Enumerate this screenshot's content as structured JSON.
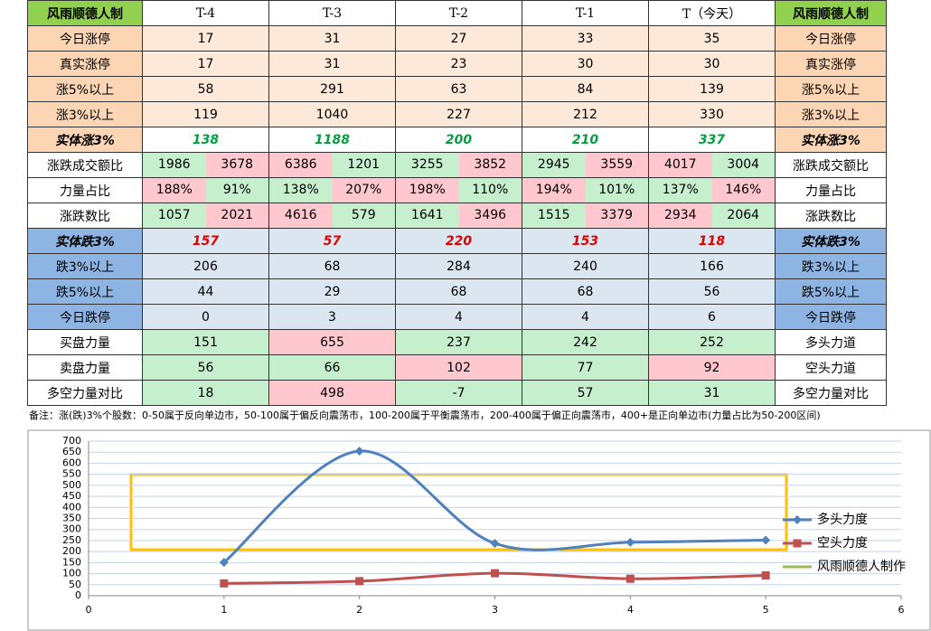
{
  "table": {
    "header": [
      "风雨顺德人制",
      "T-4",
      "T-3",
      "T-2",
      "T-1",
      "T（今天）",
      "风雨顺德人制"
    ],
    "rows": [
      {
        "label": "今日涨停",
        "right": "今日涨停",
        "style": "up",
        "cells": [
          17,
          31,
          27,
          33,
          35
        ]
      },
      {
        "label": "真实涨停",
        "right": "真实涨停",
        "style": "up",
        "cells": [
          17,
          31,
          23,
          30,
          30
        ]
      },
      {
        "label": "涨5%以上",
        "right": "涨5%以上",
        "style": "up",
        "cells": [
          58,
          291,
          63,
          84,
          139
        ]
      },
      {
        "label": "涨3%以上",
        "right": "涨3%以上",
        "style": "up",
        "cells": [
          119,
          1040,
          227,
          212,
          330
        ]
      },
      {
        "label": "实体涨3%",
        "right": "实体涨3%",
        "style": "upkey",
        "cells": [
          138,
          1188,
          200,
          210,
          337
        ]
      },
      {
        "label": "涨跌成交额比",
        "right": "涨跌成交额比",
        "style": "split",
        "cells": [
          [
            1986,
            3678
          ],
          [
            6386,
            1201
          ],
          [
            3255,
            3852
          ],
          [
            2945,
            3559
          ],
          [
            4017,
            3004
          ]
        ],
        "colors": [
          [
            "g",
            "p"
          ],
          [
            "p",
            "g"
          ],
          [
            "g",
            "p"
          ],
          [
            "g",
            "p"
          ],
          [
            "p",
            "g"
          ]
        ]
      },
      {
        "label": "力量占比",
        "right": "力量占比",
        "style": "split",
        "cells": [
          [
            "188%",
            "91%"
          ],
          [
            "138%",
            "207%"
          ],
          [
            "198%",
            "110%"
          ],
          [
            "194%",
            "101%"
          ],
          [
            "137%",
            "146%"
          ]
        ],
        "colors": [
          [
            "p",
            "g"
          ],
          [
            "g",
            "p"
          ],
          [
            "p",
            "g"
          ],
          [
            "p",
            "g"
          ],
          [
            "g",
            "p"
          ]
        ]
      },
      {
        "label": "涨跌数比",
        "right": "涨跌数比",
        "style": "split",
        "cells": [
          [
            1057,
            2021
          ],
          [
            4616,
            579
          ],
          [
            1641,
            3496
          ],
          [
            1515,
            3379
          ],
          [
            2934,
            2064
          ]
        ],
        "colors": [
          [
            "g",
            "p"
          ],
          [
            "p",
            "g"
          ],
          [
            "g",
            "p"
          ],
          [
            "g",
            "p"
          ],
          [
            "p",
            "g"
          ]
        ]
      },
      {
        "label": "实体跌3%",
        "right": "实体跌3%",
        "style": "downkey",
        "cells": [
          157,
          57,
          220,
          153,
          118
        ]
      },
      {
        "label": "跌3%以上",
        "right": "跌3%以上",
        "style": "down",
        "cells": [
          206,
          68,
          284,
          240,
          166
        ]
      },
      {
        "label": "跌5%以上",
        "right": "跌5%以上",
        "style": "down",
        "cells": [
          44,
          29,
          68,
          68,
          56
        ]
      },
      {
        "label": "今日跌停",
        "right": "今日跌停",
        "style": "down",
        "cells": [
          0,
          3,
          4,
          4,
          6
        ]
      },
      {
        "label": "买盘力量",
        "right": "多头力道",
        "style": "force",
        "cells": [
          151,
          655,
          237,
          242,
          252
        ],
        "colors": [
          "g",
          "p",
          "g",
          "g",
          "g"
        ]
      },
      {
        "label": "卖盘力量",
        "right": "空头力道",
        "style": "force",
        "cells": [
          56,
          66,
          102,
          77,
          92
        ],
        "colors": [
          "g",
          "g",
          "p",
          "g",
          "p"
        ]
      },
      {
        "label": "多空力量对比",
        "right": "多空力量对比",
        "style": "force",
        "cells": [
          18,
          498,
          -7,
          57,
          31
        ],
        "colors": [
          "g",
          "p",
          "g",
          "g",
          "g"
        ]
      }
    ]
  },
  "note": "备注：涨(跌)3%个股数：0-50属于反向单边市，50-100属于偏反向震荡市，100-200属于平衡震荡市，200-400属于偏正向震荡市，400+是正向单边市(力量占比为50-200区间)",
  "chart_data": {
    "type": "line",
    "smooth": true,
    "x": [
      1,
      2,
      3,
      4,
      5
    ],
    "series": [
      {
        "name": "多头力度",
        "color": "#4f81bd",
        "marker": "diamond",
        "values": [
          151,
          655,
          237,
          242,
          252
        ]
      },
      {
        "name": "空头力度",
        "color": "#c0504d",
        "marker": "square",
        "values": [
          56,
          66,
          102,
          77,
          92
        ]
      }
    ],
    "legend_only": [
      {
        "name": "风雨顺德人制作",
        "color": "#9bbb59"
      }
    ],
    "xlim": [
      0,
      6
    ],
    "xticks": [
      0,
      1,
      2,
      3,
      4,
      5,
      6
    ],
    "ylim": [
      0,
      700
    ],
    "yticks": [
      0,
      50,
      100,
      150,
      200,
      250,
      300,
      350,
      400,
      450,
      500,
      550,
      600,
      650,
      700
    ],
    "grid": true
  }
}
